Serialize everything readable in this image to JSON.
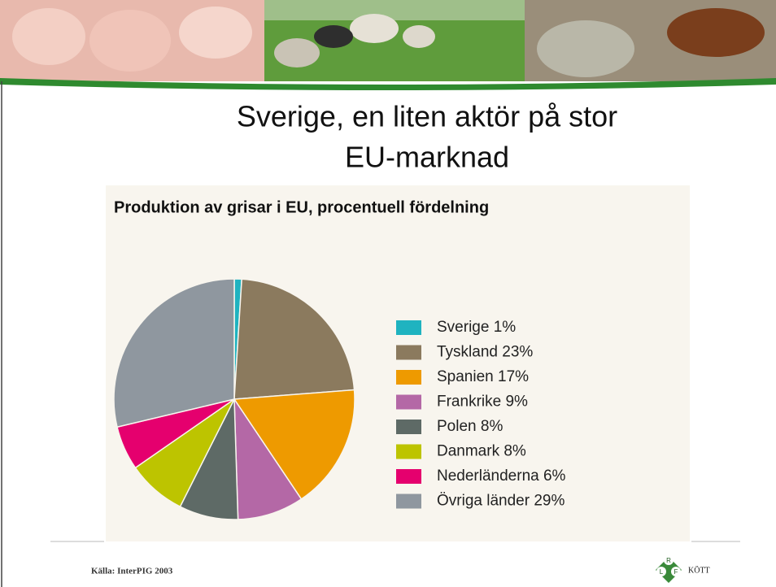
{
  "slide_title": [
    "Sverige, en liten aktör på stor",
    "EU-marknad"
  ],
  "chart_data": {
    "type": "pie",
    "title": "Produktion av grisar i EU, procentuell fördelning",
    "categories": [
      "Sverige",
      "Tyskland",
      "Spanien",
      "Frankrike",
      "Polen",
      "Danmark",
      "Nederländerna",
      "Övriga länder"
    ],
    "values": [
      1,
      23,
      17,
      9,
      8,
      8,
      6,
      29
    ],
    "value_labels": [
      "1%",
      "23%",
      "17%",
      "9%",
      "8%",
      "8%",
      "6%",
      "29%"
    ],
    "colors": [
      "#1fb3c0",
      "#8b7a5e",
      "#ee9a00",
      "#b468a6",
      "#5e6a66",
      "#bdc400",
      "#e5006e",
      "#8f979f"
    ],
    "legend": "right"
  },
  "footer": {
    "source": "Källa: InterPIG 2003",
    "logo": [
      "L",
      "R",
      "F",
      "KÖTT"
    ]
  }
}
